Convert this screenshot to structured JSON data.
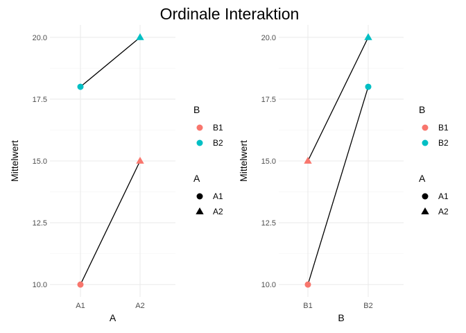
{
  "title": "Ordinale Interaktion",
  "colors": {
    "B1": "#F8766D",
    "B2": "#00BFC4",
    "grid": "#EBEBEB",
    "line": "#000000"
  },
  "chart_data": [
    {
      "type": "line",
      "xlabel": "A",
      "ylabel": "Mittelwert",
      "categories": [
        "A1",
        "A2"
      ],
      "yticks": [
        "10.0",
        "12.5",
        "15.0",
        "17.5",
        "20.0"
      ],
      "ylim": [
        9.5,
        20.5
      ],
      "grid": true,
      "series": [
        {
          "name": "B1",
          "color": "#F8766D",
          "values": [
            10,
            15
          ],
          "shapes": [
            "circle",
            "triangle"
          ]
        },
        {
          "name": "B2",
          "color": "#00BFC4",
          "values": [
            18,
            20
          ],
          "shapes": [
            "circle",
            "triangle"
          ]
        }
      ],
      "legends": [
        {
          "title": "B",
          "items": [
            {
              "label": "B1",
              "color": "#F8766D",
              "shape": "circle"
            },
            {
              "label": "B2",
              "color": "#00BFC4",
              "shape": "circle"
            }
          ]
        },
        {
          "title": "A",
          "items": [
            {
              "label": "A1",
              "color": "#000000",
              "shape": "circle"
            },
            {
              "label": "A2",
              "color": "#000000",
              "shape": "triangle"
            }
          ]
        }
      ]
    },
    {
      "type": "line",
      "xlabel": "B",
      "ylabel": "Mittelwert",
      "categories": [
        "B1",
        "B2"
      ],
      "yticks": [
        "10.0",
        "12.5",
        "15.0",
        "17.5",
        "20.0"
      ],
      "ylim": [
        9.5,
        20.5
      ],
      "grid": true,
      "series": [
        {
          "name": "A1",
          "values": [
            10,
            18
          ],
          "colors": [
            "#F8766D",
            "#00BFC4"
          ],
          "shape": "circle"
        },
        {
          "name": "A2",
          "values": [
            15,
            20
          ],
          "colors": [
            "#F8766D",
            "#00BFC4"
          ],
          "shape": "triangle"
        }
      ],
      "legends": [
        {
          "title": "B",
          "items": [
            {
              "label": "B1",
              "color": "#F8766D",
              "shape": "circle"
            },
            {
              "label": "B2",
              "color": "#00BFC4",
              "shape": "circle"
            }
          ]
        },
        {
          "title": "A",
          "items": [
            {
              "label": "A1",
              "color": "#000000",
              "shape": "circle"
            },
            {
              "label": "A2",
              "color": "#000000",
              "shape": "triangle"
            }
          ]
        }
      ]
    }
  ]
}
